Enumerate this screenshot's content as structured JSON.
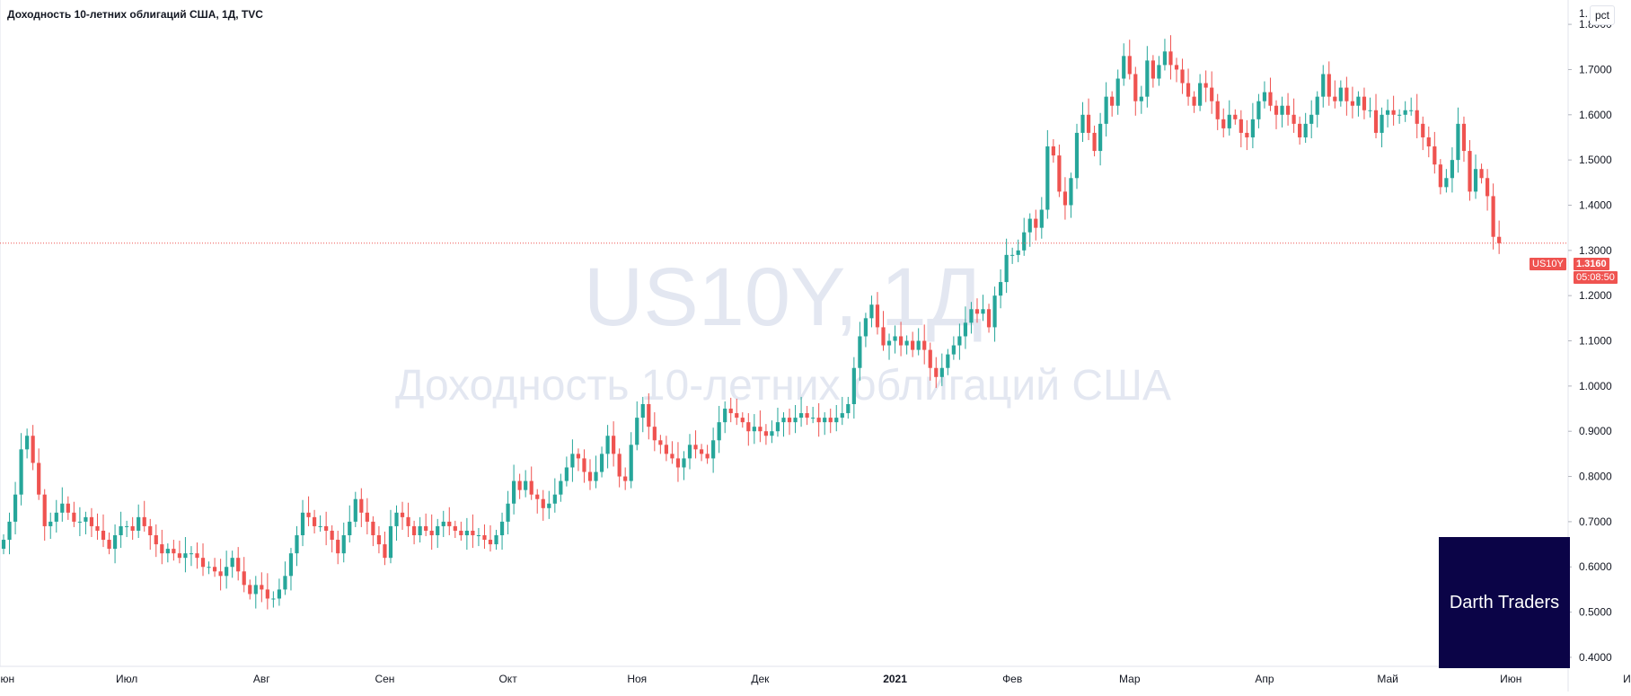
{
  "header": {
    "title": "Доходность 10-летних облигаций США, 1Д, TVC",
    "pct_label": "pct"
  },
  "watermark": {
    "symbol": "US10Y, 1Д",
    "description": "Доходность 10-летних облигаций США"
  },
  "brand": {
    "label": "Darth Traders"
  },
  "price_badge": {
    "symbol": "US10Y",
    "price": "1.3160",
    "timer": "05:08:50"
  },
  "colors": {
    "up": "#26a69a",
    "down": "#ef5350",
    "watermark": "#e3e7f1",
    "axis_text": "#131722",
    "border": "#e0e3eb",
    "brand_bg": "#0b0447"
  },
  "chart_data": {
    "type": "candlestick",
    "title": "Доходность 10-летних облигаций США, 1Д, TVC",
    "ylim": [
      0.38,
      1.83
    ],
    "y_ticks": [
      "0.4000",
      "0.5000",
      "0.6000",
      "0.7000",
      "0.8000",
      "0.9000",
      "1.0000",
      "1.1000",
      "1.2000",
      "1.3000",
      "1.4000",
      "1.5000",
      "1.6000",
      "1.7000",
      "1.8000"
    ],
    "y_top_partial_label": "1.",
    "x_labels": [
      {
        "label": "Июн",
        "index": 0
      },
      {
        "label": "Июл",
        "index": 21
      },
      {
        "label": "Авг",
        "index": 44
      },
      {
        "label": "Сен",
        "index": 65
      },
      {
        "label": "Окт",
        "index": 86
      },
      {
        "label": "Ноя",
        "index": 108
      },
      {
        "label": "Дек",
        "index": 129
      },
      {
        "label": "2021",
        "index": 152
      },
      {
        "label": "Фев",
        "index": 172
      },
      {
        "label": "Мар",
        "index": 192
      },
      {
        "label": "Апр",
        "index": 215
      },
      {
        "label": "Май",
        "index": 236
      },
      {
        "label": "Июн",
        "index": 257
      },
      {
        "label": "Июл",
        "index": 278
      }
    ],
    "last_price": 1.316,
    "close": [
      0.66,
      0.7,
      0.76,
      0.86,
      0.89,
      0.83,
      0.76,
      0.69,
      0.7,
      0.72,
      0.74,
      0.72,
      0.7,
      0.7,
      0.71,
      0.69,
      0.68,
      0.66,
      0.64,
      0.67,
      0.69,
      0.69,
      0.68,
      0.71,
      0.69,
      0.67,
      0.65,
      0.63,
      0.64,
      0.63,
      0.62,
      0.63,
      0.63,
      0.62,
      0.6,
      0.6,
      0.59,
      0.58,
      0.6,
      0.62,
      0.59,
      0.56,
      0.54,
      0.56,
      0.55,
      0.53,
      0.53,
      0.55,
      0.58,
      0.63,
      0.67,
      0.72,
      0.71,
      0.69,
      0.69,
      0.68,
      0.66,
      0.63,
      0.67,
      0.7,
      0.75,
      0.72,
      0.7,
      0.67,
      0.65,
      0.62,
      0.69,
      0.72,
      0.71,
      0.69,
      0.67,
      0.69,
      0.68,
      0.67,
      0.69,
      0.7,
      0.69,
      0.68,
      0.67,
      0.68,
      0.67,
      0.67,
      0.66,
      0.65,
      0.67,
      0.7,
      0.74,
      0.79,
      0.77,
      0.79,
      0.76,
      0.75,
      0.73,
      0.74,
      0.76,
      0.79,
      0.82,
      0.85,
      0.84,
      0.81,
      0.79,
      0.81,
      0.85,
      0.89,
      0.85,
      0.8,
      0.79,
      0.87,
      0.93,
      0.96,
      0.91,
      0.88,
      0.87,
      0.85,
      0.84,
      0.82,
      0.84,
      0.87,
      0.86,
      0.85,
      0.84,
      0.88,
      0.92,
      0.95,
      0.94,
      0.93,
      0.92,
      0.9,
      0.91,
      0.9,
      0.89,
      0.9,
      0.92,
      0.93,
      0.92,
      0.93,
      0.94,
      0.93,
      0.93,
      0.92,
      0.93,
      0.92,
      0.93,
      0.94,
      0.96,
      1.04,
      1.11,
      1.15,
      1.18,
      1.13,
      1.09,
      1.1,
      1.11,
      1.09,
      1.1,
      1.08,
      1.1,
      1.08,
      1.04,
      1.02,
      1.04,
      1.07,
      1.09,
      1.11,
      1.14,
      1.17,
      1.16,
      1.17,
      1.13,
      1.2,
      1.23,
      1.29,
      1.29,
      1.3,
      1.34,
      1.37,
      1.35,
      1.39,
      1.53,
      1.51,
      1.43,
      1.4,
      1.46,
      1.56,
      1.6,
      1.56,
      1.52,
      1.58,
      1.64,
      1.62,
      1.68,
      1.73,
      1.69,
      1.63,
      1.64,
      1.72,
      1.68,
      1.71,
      1.74,
      1.71,
      1.7,
      1.67,
      1.64,
      1.62,
      1.67,
      1.66,
      1.63,
      1.59,
      1.57,
      1.6,
      1.59,
      1.56,
      1.55,
      1.59,
      1.63,
      1.65,
      1.62,
      1.6,
      1.62,
      1.6,
      1.58,
      1.55,
      1.58,
      1.6,
      1.64,
      1.69,
      1.64,
      1.63,
      1.66,
      1.63,
      1.62,
      1.64,
      1.61,
      1.61,
      1.56,
      1.6,
      1.61,
      1.6,
      1.6,
      1.61,
      1.61,
      1.58,
      1.55,
      1.53,
      1.49,
      1.44,
      1.46,
      1.5,
      1.58,
      1.52,
      1.43,
      1.48,
      1.46,
      1.42,
      1.33,
      1.3
    ],
    "note_close_index_277": 1.316
  }
}
